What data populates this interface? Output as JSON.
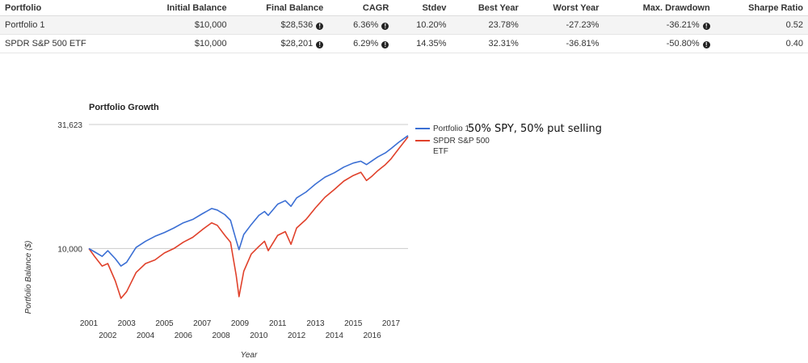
{
  "table": {
    "headers": [
      "Portfolio",
      "Initial Balance",
      "Final Balance",
      "CAGR",
      "Stdev",
      "Best Year",
      "Worst Year",
      "Max. Drawdown",
      "Sharpe Ratio"
    ],
    "rows": [
      {
        "portfolio": "Portfolio 1",
        "initial": "$10,000",
        "final": "$28,536",
        "cagr": "6.36%",
        "stdev": "10.20%",
        "best": "23.78%",
        "worst": "-27.23%",
        "drawdown": "-36.21%",
        "sharpe": "0.52"
      },
      {
        "portfolio": "SPDR S&P 500 ETF",
        "initial": "$10,000",
        "final": "$28,201",
        "cagr": "6.29%",
        "stdev": "14.35%",
        "best": "32.31%",
        "worst": "-36.81%",
        "drawdown": "-50.80%",
        "sharpe": "0.40"
      }
    ],
    "info_icon": "info-circle-icon"
  },
  "chart_data": {
    "type": "line",
    "title": "Portfolio Growth",
    "xlabel": "Year",
    "ylabel": "Portfolio Balance ($)",
    "y_scale": "log",
    "y_ticks": [
      10000,
      31623
    ],
    "y_tick_labels": [
      "10,000",
      "31,623"
    ],
    "ylim": [
      5800,
      31623
    ],
    "xlim": [
      2001.0,
      2017.9
    ],
    "x_ticks_upper": [
      "2001",
      "2003",
      "2005",
      "2007",
      "2009",
      "2011",
      "2013",
      "2015",
      "2017"
    ],
    "x_ticks_lower": [
      "2002",
      "2004",
      "2006",
      "2008",
      "2010",
      "2012",
      "2014",
      "2016"
    ],
    "annotation": "50% SPY, 50% put selling",
    "legend_position": "right",
    "series": [
      {
        "name": "Portfolio 1",
        "color": "#3b6fd4",
        "x": [
          2001.0,
          2001.3,
          2001.7,
          2002.0,
          2002.4,
          2002.7,
          2003.0,
          2003.5,
          2004.0,
          2004.5,
          2005.0,
          2005.5,
          2006.0,
          2006.5,
          2007.0,
          2007.5,
          2007.8,
          2008.2,
          2008.5,
          2008.8,
          2008.95,
          2009.2,
          2009.6,
          2010.0,
          2010.3,
          2010.5,
          2011.0,
          2011.4,
          2011.7,
          2012.0,
          2012.5,
          2013.0,
          2013.5,
          2014.0,
          2014.5,
          2015.0,
          2015.4,
          2015.7,
          2016.0,
          2016.3,
          2016.7,
          2017.0,
          2017.4,
          2017.9
        ],
        "values": [
          10000,
          9700,
          9300,
          9800,
          9100,
          8500,
          8800,
          10100,
          10700,
          11200,
          11600,
          12100,
          12700,
          13100,
          13800,
          14500,
          14300,
          13700,
          13000,
          10800,
          9900,
          11400,
          12500,
          13600,
          14100,
          13600,
          15100,
          15600,
          14800,
          16000,
          16900,
          18200,
          19400,
          20200,
          21300,
          22100,
          22500,
          21800,
          22600,
          23400,
          24300,
          25300,
          26800,
          28536
        ]
      },
      {
        "name": "SPDR S&P 500 ETF",
        "color": "#e0412b",
        "x": [
          2001.0,
          2001.3,
          2001.7,
          2002.0,
          2002.4,
          2002.7,
          2003.0,
          2003.5,
          2004.0,
          2004.5,
          2005.0,
          2005.5,
          2006.0,
          2006.5,
          2007.0,
          2007.5,
          2007.8,
          2008.2,
          2008.5,
          2008.8,
          2008.95,
          2009.2,
          2009.6,
          2010.0,
          2010.3,
          2010.5,
          2011.0,
          2011.4,
          2011.7,
          2012.0,
          2012.5,
          2013.0,
          2013.5,
          2014.0,
          2014.5,
          2015.0,
          2015.4,
          2015.7,
          2016.0,
          2016.3,
          2016.7,
          2017.0,
          2017.4,
          2017.9
        ],
        "values": [
          10000,
          9300,
          8500,
          8700,
          7400,
          6300,
          6700,
          8000,
          8700,
          9000,
          9600,
          10000,
          10600,
          11100,
          11900,
          12700,
          12400,
          11300,
          10600,
          7800,
          6400,
          8100,
          9500,
          10200,
          10700,
          9800,
          11300,
          11700,
          10400,
          12100,
          13100,
          14600,
          16100,
          17300,
          18700,
          19700,
          20300,
          18800,
          19600,
          20600,
          21800,
          23000,
          25200,
          28201
        ]
      }
    ]
  }
}
